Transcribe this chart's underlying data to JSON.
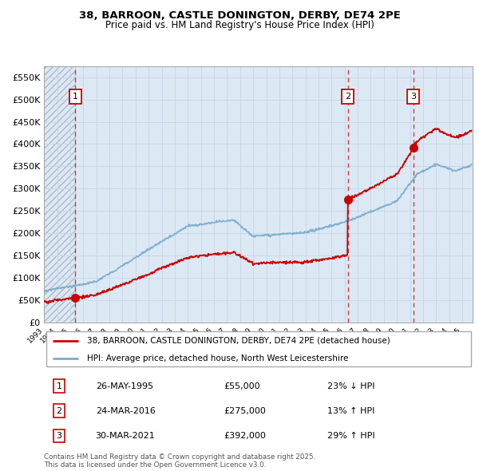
{
  "title1": "38, BARROON, CASTLE DONINGTON, DERBY, DE74 2PE",
  "title2": "Price paid vs. HM Land Registry's House Price Index (HPI)",
  "ylim": [
    0,
    575000
  ],
  "yticks": [
    0,
    50000,
    100000,
    150000,
    200000,
    250000,
    300000,
    350000,
    400000,
    450000,
    500000,
    550000
  ],
  "ytick_labels": [
    "£0",
    "£50K",
    "£100K",
    "£150K",
    "£200K",
    "£250K",
    "£300K",
    "£350K",
    "£400K",
    "£450K",
    "£500K",
    "£550K"
  ],
  "xlim_start": 1993.0,
  "xlim_end": 2025.8,
  "transactions": [
    {
      "num": 1,
      "date_label": "26-MAY-1995",
      "date_x": 1995.4,
      "price": 55000,
      "pct": "23%",
      "dir": "↓",
      "price_str": "£55,000"
    },
    {
      "num": 2,
      "date_label": "24-MAR-2016",
      "date_x": 2016.23,
      "price": 275000,
      "pct": "13%",
      "dir": "↑",
      "price_str": "£275,000"
    },
    {
      "num": 3,
      "date_label": "30-MAR-2021",
      "date_x": 2021.24,
      "price": 392000,
      "pct": "29%",
      "dir": "↑",
      "price_str": "£392,000"
    }
  ],
  "legend_line1": "38, BARROON, CASTLE DONINGTON, DERBY, DE74 2PE (detached house)",
  "legend_line2": "HPI: Average price, detached house, North West Leicestershire",
  "footer": "Contains HM Land Registry data © Crown copyright and database right 2025.\nThis data is licensed under the Open Government Licence v3.0.",
  "plot_bg_color": "#dce9f5",
  "hatch_color": "#b0b8c8",
  "red_line_color": "#cc0000",
  "blue_line_color": "#7aabcc",
  "grid_color": "#c8d8e8",
  "title_fontsize": 9.5,
  "subtitle_fontsize": 8.5
}
